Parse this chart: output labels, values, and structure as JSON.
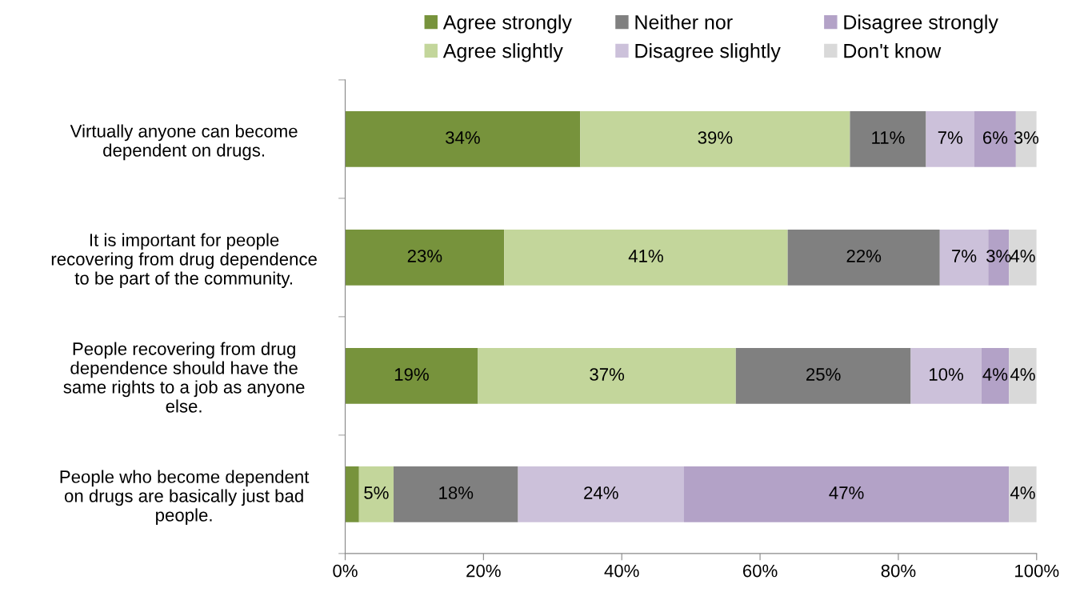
{
  "chart_data": {
    "type": "bar",
    "orientation": "horizontal",
    "stacked": true,
    "categories": [
      "Virtually anyone can become\ndependent on drugs.",
      "It is important for people\nrecovering from drug dependence\nto be part of the community.",
      "People recovering from drug\ndependence should have the\nsame rights to a job as anyone\nelse.",
      "People who become dependent\non drugs are basically just bad\npeople."
    ],
    "series": [
      {
        "name": "Agree strongly",
        "color": "#77933c",
        "values": [
          34,
          23,
          19.2,
          2
        ],
        "value_labels": [
          "34%",
          "23%",
          "19%",
          null
        ]
      },
      {
        "name": "Agree slightly",
        "color": "#c3d69b",
        "values": [
          39,
          41,
          37.3,
          5
        ],
        "value_labels": [
          "39%",
          "41%",
          "37%",
          "5%"
        ]
      },
      {
        "name": "Neither nor",
        "color": "#808080",
        "values": [
          11,
          22,
          25.3,
          18
        ],
        "value_labels": [
          "11%",
          "22%",
          "25%",
          "18%"
        ]
      },
      {
        "name": "Disagree slightly",
        "color": "#ccc1da",
        "values": [
          7,
          7,
          10.2,
          24
        ],
        "value_labels": [
          "7%",
          "7%",
          "10%",
          "24%"
        ]
      },
      {
        "name": "Disagree strongly",
        "color": "#b3a2c7",
        "values": [
          6,
          3,
          4,
          47
        ],
        "value_labels": [
          "6%",
          "3%",
          "4%",
          "47%"
        ]
      },
      {
        "name": "Don't know",
        "color": "#d9d9d9",
        "values": [
          3,
          4,
          4,
          4
        ],
        "value_labels": [
          "3%",
          "4%",
          "4%",
          "4%"
        ]
      }
    ],
    "xlim": [
      0,
      100
    ],
    "xticks": [
      {
        "value": 0,
        "label": "0%"
      },
      {
        "value": 20,
        "label": "20%"
      },
      {
        "value": 40,
        "label": "40%"
      },
      {
        "value": 60,
        "label": "60%"
      },
      {
        "value": 80,
        "label": "80%"
      },
      {
        "value": 100,
        "label": "100%"
      }
    ],
    "grid": false,
    "legend": "top"
  }
}
